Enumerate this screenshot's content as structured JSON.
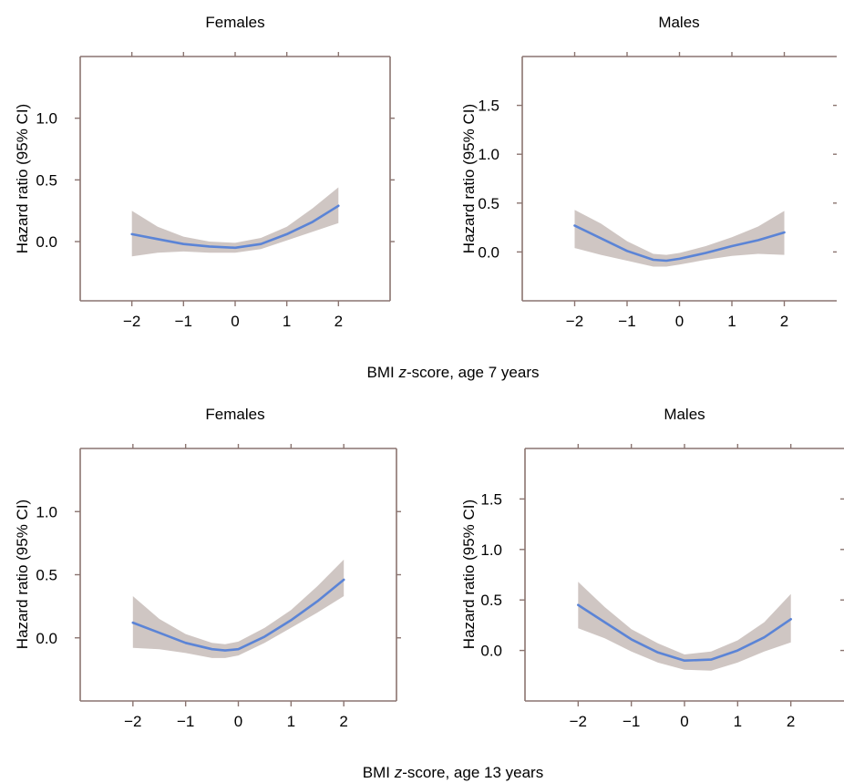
{
  "rows": [
    {
      "xlabel_prefix": "BMI ",
      "xlabel_italic": "z",
      "xlabel_suffix": "-score, age 7 years"
    },
    {
      "xlabel_prefix": "BMI ",
      "xlabel_italic": "z",
      "xlabel_suffix": "-score, age 13 years"
    }
  ],
  "colors": {
    "line": "#5b84d6",
    "band": "#cfc6c3",
    "axis": "#8a7470"
  },
  "chart_data": [
    {
      "type": "line",
      "title": "Females",
      "ylabel": "Hazard ratio (95% CI)",
      "xlim": [
        -3,
        3
      ],
      "ylim": [
        -0.48,
        1.5
      ],
      "xticks": [
        -2,
        -1,
        0,
        1,
        2
      ],
      "xtick_labels": [
        "−2",
        "−1",
        "0",
        "1",
        "2"
      ],
      "yticks": [
        0.0,
        0.5,
        1.0
      ],
      "ytick_labels": [
        "0.0",
        "0.5",
        "1.0"
      ],
      "series": [
        {
          "x": [
            -2,
            -1.5,
            -1,
            -0.5,
            0,
            0.5,
            1,
            1.5,
            2
          ],
          "y": [
            0.06,
            0.02,
            -0.02,
            -0.04,
            -0.05,
            -0.02,
            0.06,
            0.16,
            0.29
          ],
          "lower": [
            -0.12,
            -0.09,
            -0.08,
            -0.09,
            -0.09,
            -0.06,
            0.01,
            0.08,
            0.15
          ],
          "upper": [
            0.25,
            0.12,
            0.04,
            0.0,
            -0.01,
            0.03,
            0.12,
            0.27,
            0.44
          ]
        }
      ]
    },
    {
      "type": "line",
      "title": "Males",
      "ylabel": "Hazard ratio (95% CI)",
      "xlim": [
        -3,
        3
      ],
      "ylim": [
        -0.5,
        2.0
      ],
      "xticks": [
        -2,
        -1,
        0,
        1,
        2
      ],
      "xtick_labels": [
        "−2",
        "−1",
        "0",
        "1",
        "2"
      ],
      "yticks": [
        0.0,
        0.5,
        1.0,
        1.5
      ],
      "ytick_labels": [
        "0.0",
        "0.5",
        "1.0",
        "1.5"
      ],
      "series": [
        {
          "x": [
            -2,
            -1.5,
            -1,
            -0.5,
            -0.25,
            0,
            0.5,
            1,
            1.5,
            2
          ],
          "y": [
            0.27,
            0.14,
            0.01,
            -0.08,
            -0.09,
            -0.07,
            -0.01,
            0.06,
            0.12,
            0.2
          ],
          "lower": [
            0.04,
            -0.03,
            -0.09,
            -0.15,
            -0.15,
            -0.13,
            -0.08,
            -0.04,
            -0.02,
            -0.03
          ],
          "upper": [
            0.43,
            0.29,
            0.11,
            -0.02,
            -0.03,
            -0.01,
            0.06,
            0.15,
            0.26,
            0.42
          ]
        }
      ]
    },
    {
      "type": "line",
      "title": "Females",
      "ylabel": "Hazard ratio (95% CI)",
      "xlim": [
        -3,
        3
      ],
      "ylim": [
        -0.5,
        1.5
      ],
      "xticks": [
        -2,
        -1,
        0,
        1,
        2
      ],
      "xtick_labels": [
        "−2",
        "−1",
        "0",
        "1",
        "2"
      ],
      "yticks": [
        0.0,
        0.5,
        1.0
      ],
      "ytick_labels": [
        "0.0",
        "0.5",
        "1.0"
      ],
      "series": [
        {
          "x": [
            -2,
            -1.5,
            -1,
            -0.5,
            -0.25,
            0,
            0.5,
            1,
            1.5,
            2
          ],
          "y": [
            0.12,
            0.04,
            -0.04,
            -0.09,
            -0.1,
            -0.09,
            0.01,
            0.14,
            0.29,
            0.46
          ],
          "lower": [
            -0.08,
            -0.09,
            -0.12,
            -0.16,
            -0.16,
            -0.14,
            -0.04,
            0.08,
            0.2,
            0.33
          ],
          "upper": [
            0.33,
            0.15,
            0.03,
            -0.04,
            -0.05,
            -0.03,
            0.08,
            0.22,
            0.41,
            0.62
          ]
        }
      ]
    },
    {
      "type": "line",
      "title": "Males",
      "ylabel": "Hazard ratio (95% CI)",
      "xlim": [
        -3,
        3
      ],
      "ylim": [
        -0.5,
        2.0
      ],
      "xticks": [
        -2,
        -1,
        0,
        1,
        2
      ],
      "xtick_labels": [
        "−2",
        "−1",
        "0",
        "1",
        "2"
      ],
      "yticks": [
        0.0,
        0.5,
        1.0,
        1.5
      ],
      "ytick_labels": [
        "0.0",
        "0.5",
        "1.0",
        "1.5"
      ],
      "series": [
        {
          "x": [
            -2,
            -1.5,
            -1,
            -0.5,
            0,
            0.5,
            1,
            1.5,
            2
          ],
          "y": [
            0.45,
            0.28,
            0.11,
            -0.02,
            -0.1,
            -0.09,
            0.0,
            0.13,
            0.31
          ],
          "lower": [
            0.22,
            0.12,
            -0.01,
            -0.12,
            -0.19,
            -0.2,
            -0.12,
            -0.01,
            0.08
          ],
          "upper": [
            0.68,
            0.43,
            0.21,
            0.07,
            -0.04,
            -0.01,
            0.1,
            0.28,
            0.56
          ]
        }
      ]
    }
  ]
}
